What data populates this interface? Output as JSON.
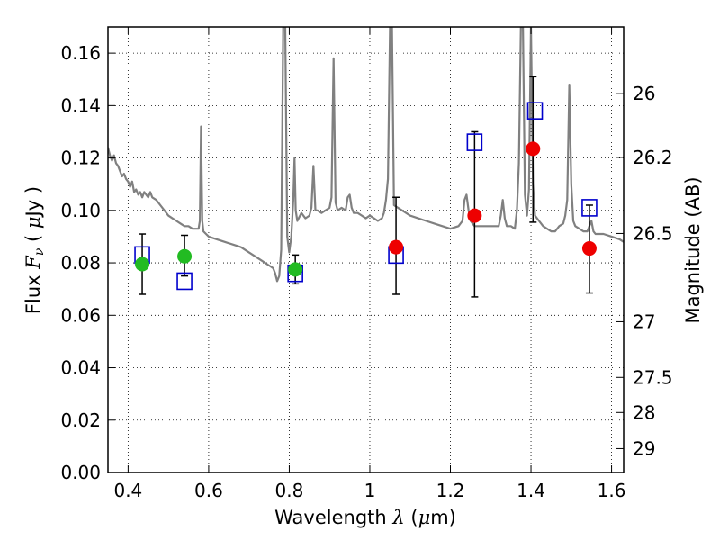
{
  "chart_data": {
    "type": "scatter",
    "title": "",
    "xlabel": "Wavelength  λ (μm)",
    "ylabel": "Flux  Fν  ( μJy )",
    "y2label": "Magnitude (AB)",
    "xlim": [
      0.35,
      1.63
    ],
    "ylim": [
      0.0,
      0.17
    ],
    "grid": true,
    "legend": "none",
    "x_ticks": [
      0.4,
      0.6,
      0.8,
      1.0,
      1.2,
      1.4,
      1.6
    ],
    "x_tick_labels": [
      "0.4",
      "0.6",
      "0.8",
      "1",
      "1.2",
      "1.4",
      "1.6"
    ],
    "y_ticks": [
      0.0,
      0.02,
      0.04,
      0.06,
      0.08,
      0.1,
      0.12,
      0.14,
      0.16
    ],
    "y_tick_labels": [
      "0.00",
      "0.02",
      "0.04",
      "0.06",
      "0.08",
      "0.10",
      "0.12",
      "0.14",
      "0.16"
    ],
    "y2_ticks": [
      26,
      26.2,
      26.5,
      27,
      27.5,
      28,
      29
    ],
    "y2_tick_labels": [
      "26",
      "26.2",
      "26.5",
      "27",
      "27.5",
      "28",
      "29"
    ],
    "colors": {
      "spectrum": "#808080",
      "model_box": "#0000cc",
      "green_point": "#22bb22",
      "red_point": "#ee0000",
      "errorbar": "#000000"
    },
    "series": [
      {
        "kind": "line",
        "color": "#808080",
        "points": [
          [
            0.35,
            0.124
          ],
          [
            0.355,
            0.121
          ],
          [
            0.36,
            0.119
          ],
          [
            0.365,
            0.121
          ],
          [
            0.37,
            0.118
          ],
          [
            0.375,
            0.117
          ],
          [
            0.38,
            0.115
          ],
          [
            0.385,
            0.113
          ],
          [
            0.39,
            0.114
          ],
          [
            0.395,
            0.112
          ],
          [
            0.4,
            0.111
          ],
          [
            0.405,
            0.109
          ],
          [
            0.41,
            0.111
          ],
          [
            0.415,
            0.107
          ],
          [
            0.42,
            0.108
          ],
          [
            0.425,
            0.106
          ],
          [
            0.43,
            0.107
          ],
          [
            0.435,
            0.105
          ],
          [
            0.44,
            0.107
          ],
          [
            0.445,
            0.106
          ],
          [
            0.45,
            0.105
          ],
          [
            0.455,
            0.107
          ],
          [
            0.46,
            0.105
          ],
          [
            0.47,
            0.104
          ],
          [
            0.48,
            0.102
          ],
          [
            0.49,
            0.1
          ],
          [
            0.5,
            0.098
          ],
          [
            0.51,
            0.097
          ],
          [
            0.52,
            0.096
          ],
          [
            0.53,
            0.095
          ],
          [
            0.54,
            0.094
          ],
          [
            0.55,
            0.094
          ],
          [
            0.56,
            0.093
          ],
          [
            0.57,
            0.093
          ],
          [
            0.575,
            0.093
          ],
          [
            0.578,
            0.096
          ],
          [
            0.581,
            0.132
          ],
          [
            0.584,
            0.096
          ],
          [
            0.587,
            0.092
          ],
          [
            0.6,
            0.09
          ],
          [
            0.62,
            0.089
          ],
          [
            0.64,
            0.088
          ],
          [
            0.66,
            0.087
          ],
          [
            0.68,
            0.086
          ],
          [
            0.7,
            0.084
          ],
          [
            0.72,
            0.082
          ],
          [
            0.74,
            0.08
          ],
          [
            0.75,
            0.079
          ],
          [
            0.76,
            0.078
          ],
          [
            0.765,
            0.076
          ],
          [
            0.77,
            0.073
          ],
          [
            0.775,
            0.075
          ],
          [
            0.78,
            0.085
          ],
          [
            0.785,
            0.17
          ],
          [
            0.79,
            0.17
          ],
          [
            0.795,
            0.09
          ],
          [
            0.8,
            0.084
          ],
          [
            0.805,
            0.09
          ],
          [
            0.81,
            0.104
          ],
          [
            0.813,
            0.12
          ],
          [
            0.816,
            0.1
          ],
          [
            0.82,
            0.096
          ],
          [
            0.83,
            0.099
          ],
          [
            0.84,
            0.097
          ],
          [
            0.85,
            0.098
          ],
          [
            0.855,
            0.101
          ],
          [
            0.86,
            0.117
          ],
          [
            0.865,
            0.1
          ],
          [
            0.87,
            0.1
          ],
          [
            0.88,
            0.099
          ],
          [
            0.89,
            0.1
          ],
          [
            0.9,
            0.101
          ],
          [
            0.905,
            0.105
          ],
          [
            0.91,
            0.158
          ],
          [
            0.915,
            0.103
          ],
          [
            0.92,
            0.1
          ],
          [
            0.93,
            0.101
          ],
          [
            0.94,
            0.1
          ],
          [
            0.945,
            0.105
          ],
          [
            0.95,
            0.106
          ],
          [
            0.955,
            0.101
          ],
          [
            0.96,
            0.099
          ],
          [
            0.97,
            0.099
          ],
          [
            0.98,
            0.098
          ],
          [
            0.99,
            0.097
          ],
          [
            1.0,
            0.098
          ],
          [
            1.01,
            0.097
          ],
          [
            1.02,
            0.096
          ],
          [
            1.03,
            0.097
          ],
          [
            1.035,
            0.099
          ],
          [
            1.04,
            0.104
          ],
          [
            1.045,
            0.112
          ],
          [
            1.05,
            0.17
          ],
          [
            1.055,
            0.17
          ],
          [
            1.06,
            0.102
          ],
          [
            1.07,
            0.101
          ],
          [
            1.08,
            0.1
          ],
          [
            1.09,
            0.099
          ],
          [
            1.1,
            0.098
          ],
          [
            1.12,
            0.097
          ],
          [
            1.14,
            0.096
          ],
          [
            1.16,
            0.095
          ],
          [
            1.18,
            0.094
          ],
          [
            1.2,
            0.093
          ],
          [
            1.22,
            0.094
          ],
          [
            1.23,
            0.096
          ],
          [
            1.235,
            0.104
          ],
          [
            1.24,
            0.106
          ],
          [
            1.245,
            0.1
          ],
          [
            1.25,
            0.096
          ],
          [
            1.26,
            0.094
          ],
          [
            1.28,
            0.094
          ],
          [
            1.3,
            0.094
          ],
          [
            1.32,
            0.094
          ],
          [
            1.325,
            0.098
          ],
          [
            1.33,
            0.104
          ],
          [
            1.335,
            0.097
          ],
          [
            1.34,
            0.094
          ],
          [
            1.35,
            0.094
          ],
          [
            1.36,
            0.093
          ],
          [
            1.365,
            0.1
          ],
          [
            1.37,
            0.118
          ],
          [
            1.375,
            0.17
          ],
          [
            1.38,
            0.17
          ],
          [
            1.385,
            0.106
          ],
          [
            1.39,
            0.098
          ],
          [
            1.395,
            0.108
          ],
          [
            1.4,
            0.17
          ],
          [
            1.405,
            0.11
          ],
          [
            1.41,
            0.098
          ],
          [
            1.42,
            0.096
          ],
          [
            1.43,
            0.094
          ],
          [
            1.44,
            0.093
          ],
          [
            1.45,
            0.092
          ],
          [
            1.46,
            0.092
          ],
          [
            1.47,
            0.094
          ],
          [
            1.48,
            0.095
          ],
          [
            1.485,
            0.098
          ],
          [
            1.49,
            0.104
          ],
          [
            1.495,
            0.148
          ],
          [
            1.5,
            0.11
          ],
          [
            1.505,
            0.096
          ],
          [
            1.51,
            0.094
          ],
          [
            1.52,
            0.093
          ],
          [
            1.53,
            0.092
          ],
          [
            1.54,
            0.092
          ],
          [
            1.545,
            0.094
          ],
          [
            1.55,
            0.096
          ],
          [
            1.555,
            0.092
          ],
          [
            1.56,
            0.091
          ],
          [
            1.58,
            0.091
          ],
          [
            1.6,
            0.09
          ],
          [
            1.62,
            0.089
          ],
          [
            1.63,
            0.088
          ]
        ]
      },
      {
        "kind": "boxes",
        "color": "#0000cc",
        "points": [
          [
            0.435,
            0.083
          ],
          [
            0.54,
            0.073
          ],
          [
            0.815,
            0.076
          ],
          [
            1.065,
            0.083
          ],
          [
            1.26,
            0.126
          ],
          [
            1.41,
            0.138
          ],
          [
            1.545,
            0.101
          ]
        ]
      },
      {
        "kind": "errorbar-points",
        "color": "#22bb22",
        "points": [
          {
            "x": 0.435,
            "y": 0.0795,
            "lo": 0.068,
            "hi": 0.091
          },
          {
            "x": 0.54,
            "y": 0.0825,
            "lo": 0.075,
            "hi": 0.0905
          },
          {
            "x": 0.815,
            "y": 0.0775,
            "lo": 0.072,
            "hi": 0.083
          }
        ]
      },
      {
        "kind": "errorbar-points",
        "color": "#ee0000",
        "points": [
          {
            "x": 1.065,
            "y": 0.086,
            "lo": 0.068,
            "hi": 0.105
          },
          {
            "x": 1.26,
            "y": 0.098,
            "lo": 0.067,
            "hi": 0.13
          },
          {
            "x": 1.405,
            "y": 0.1235,
            "lo": 0.0955,
            "hi": 0.151
          },
          {
            "x": 1.545,
            "y": 0.0855,
            "lo": 0.0685,
            "hi": 0.102
          }
        ]
      }
    ]
  }
}
